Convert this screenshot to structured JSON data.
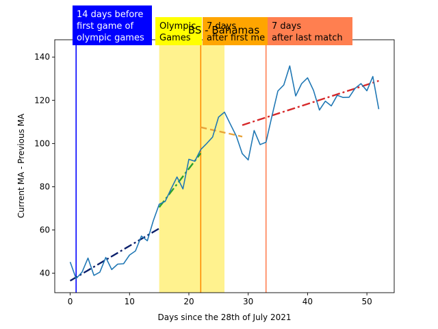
{
  "chart_data": {
    "type": "line",
    "title": "BS - Bahamas",
    "xlabel": "Days since the 28th of July 2021",
    "ylabel": "Current MA - Previous MA",
    "xlim": [
      -2.6,
      54.6
    ],
    "ylim": [
      31,
      148
    ],
    "xticks": [
      0,
      10,
      20,
      30,
      40,
      50
    ],
    "yticks": [
      40,
      60,
      80,
      100,
      120,
      140
    ],
    "grid": false,
    "series": [
      {
        "color": "#1f77b4",
        "style": "solid",
        "x": [
          0,
          1,
          2,
          3,
          4,
          5,
          6,
          7,
          8,
          9,
          10,
          11,
          12,
          13,
          14,
          15,
          16,
          17,
          18,
          19,
          20,
          21,
          22,
          23,
          24,
          25,
          26,
          27,
          28,
          29,
          30,
          31,
          32,
          33,
          34,
          35,
          36,
          37,
          38,
          39,
          40,
          41,
          42,
          43,
          44,
          45,
          46,
          47,
          48,
          49,
          50,
          51,
          52
        ],
        "values": [
          45.2,
          37.5,
          40.5,
          47,
          39,
          40.5,
          47.3,
          41.7,
          44.2,
          44.4,
          48.4,
          50.3,
          57.2,
          55,
          64.2,
          71.9,
          73.2,
          79,
          84.5,
          79,
          92.7,
          91.8,
          97.2,
          100,
          103,
          112.2,
          114.5,
          108.9,
          103.4,
          95.3,
          92.4,
          106,
          99.5,
          100.6,
          112.7,
          124.3,
          127.1,
          135.9,
          122,
          127.7,
          130.4,
          124.6,
          115.5,
          119.6,
          117.4,
          122.3,
          121.3,
          121.4,
          125.5,
          127.7,
          124.4,
          131,
          115.9
        ]
      }
    ],
    "trend_lines": [
      {
        "color": "#0a1f6b",
        "style": "dash-dot",
        "x": [
          0,
          15
        ],
        "values": [
          36.5,
          60.7
        ]
      },
      {
        "color": "#2ca02c",
        "style": "dash-dot",
        "x": [
          15,
          22
        ],
        "values": [
          70.5,
          95.5
        ]
      },
      {
        "color": "#e8a33a",
        "style": "dashed",
        "x": [
          22,
          29
        ],
        "values": [
          107.5,
          103.2
        ]
      },
      {
        "color": "#d62728",
        "style": "dash-dot",
        "x": [
          29,
          52
        ],
        "values": [
          108.5,
          129
        ]
      }
    ],
    "spans": [
      {
        "x0": 15,
        "x1": 26,
        "color": "#fff07a"
      }
    ],
    "vlines": [
      {
        "x": 1,
        "color": "#0000ff"
      },
      {
        "x": 22,
        "color": "#ff8c00"
      },
      {
        "x": 33,
        "color": "#ff7f50"
      }
    ],
    "annotations": [
      {
        "lines": [
          "14 days before",
          "first game of",
          "olympic games"
        ],
        "background": "#0000ff",
        "text_color": "#ffffff"
      },
      {
        "lines": [
          "Olympic",
          "Games"
        ],
        "background": "#ffff00",
        "text_color": "#000000"
      },
      {
        "lines": [
          "7 days",
          "after first me"
        ],
        "background": "#ffa500",
        "text_color": "#000000"
      },
      {
        "lines": [
          "7 days",
          "after last match"
        ],
        "background": "#ff7f50",
        "text_color": "#000000"
      }
    ]
  }
}
